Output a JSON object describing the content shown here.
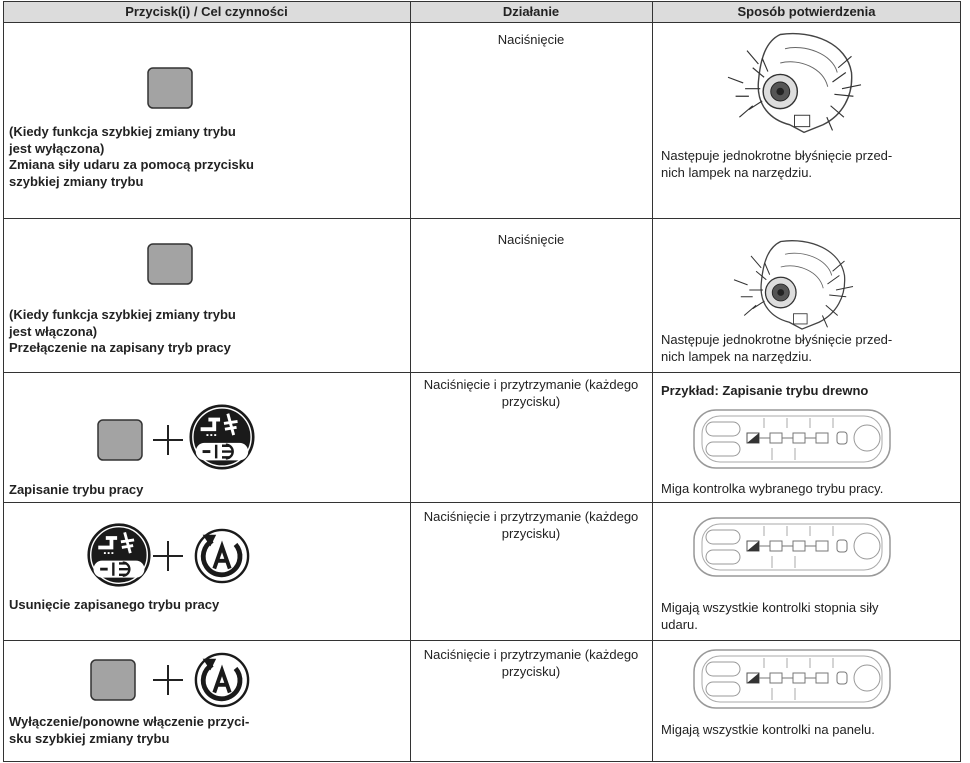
{
  "header": {
    "columns": [
      "Przycisk(i) / Cel czynności",
      "Działanie",
      "Sposób potwierdzenia"
    ]
  },
  "rows": [
    {
      "target": [
        "(Kiedy funkcja szybkiej zmiany trybu",
        "jest wyłączona)",
        "Zmiana siły udaru za pomocą przycisku",
        "szybkiej zmiany trybu"
      ],
      "action": [
        "Naciśnięcie"
      ],
      "confirmation": [
        "Następuje jednokrotne błyśnięcie przed-",
        "nich lampek na narzędziu."
      ]
    },
    {
      "target": [
        "(Kiedy funkcja szybkiej zmiany trybu",
        "jest włączona)",
        "Przełączenie na zapisany tryb pracy"
      ],
      "action": [
        "Naciśnięcie"
      ],
      "confirmation": [
        "Następuje jednokrotne błyśnięcie przed-",
        "nich lampek na narzędziu."
      ]
    },
    {
      "target": [
        "Zapisanie trybu pracy"
      ],
      "action": [
        "Naciśnięcie i przytrzymanie (każdego",
        "przycisku)"
      ],
      "example": "Przykład: Zapisanie trybu drewno",
      "confirmation": [
        "Miga kontrolka wybranego trybu pracy."
      ]
    },
    {
      "target": [
        "Usunięcie zapisanego trybu pracy"
      ],
      "action": [
        "Naciśnięcie i przytrzymanie (każdego",
        "przycisku)"
      ],
      "confirmation": [
        "Migają wszystkie kontrolki stopnia siły",
        "udaru."
      ]
    },
    {
      "target": [
        "Wyłączenie/ponowne włączenie przyci-",
        "sku szybkiej zmiany trybu"
      ],
      "action": [
        "Naciśnięcie i przytrzymanie (każdego",
        "przycisku)"
      ],
      "confirmation": [
        "Migają wszystkie kontrolki na panelu."
      ]
    }
  ]
}
